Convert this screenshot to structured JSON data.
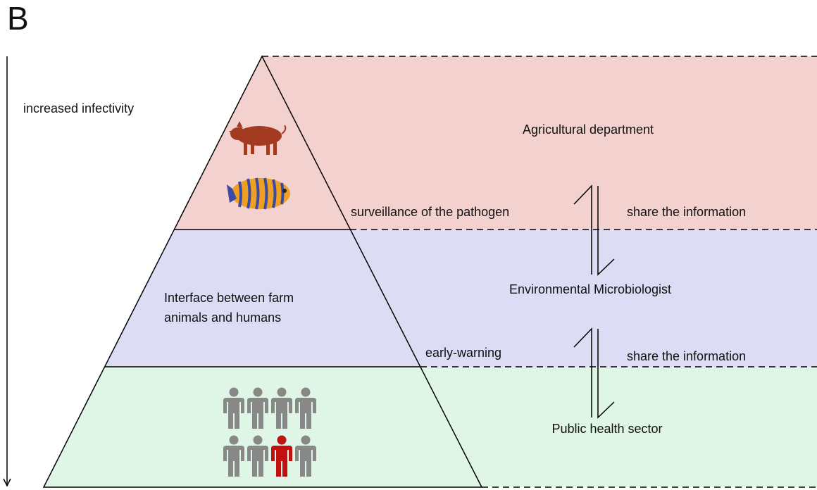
{
  "panel_label": "B",
  "axis_label": "increased infectivity",
  "levels": [
    {
      "name": "Agricultural department",
      "left_note": "surveillance of the pathogen",
      "right_note": "share the information"
    },
    {
      "name": "Environmental Microbiologist",
      "left_note": "early-warning",
      "right_note": "share the information"
    },
    {
      "name": "Public health sector"
    }
  ],
  "pyramid_middle_label": [
    "Interface between farm",
    "animals and humans"
  ]
}
